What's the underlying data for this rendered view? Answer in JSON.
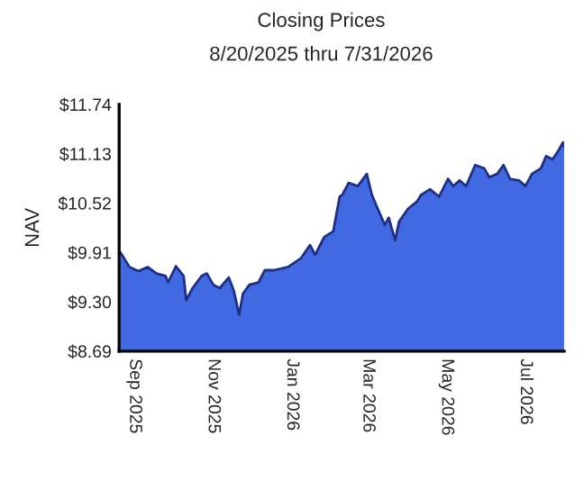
{
  "chart_data": {
    "type": "area",
    "title": "Closing Prices",
    "subtitle": "8/20/2025 thru 7/31/2026",
    "ylabel": "NAV",
    "x": [
      "2025-08-21",
      "2025-08-28",
      "2025-09-04",
      "2025-09-11",
      "2025-09-18",
      "2025-09-25",
      "2025-09-27",
      "2025-10-03",
      "2025-10-09",
      "2025-10-11",
      "2025-10-16",
      "2025-10-23",
      "2025-10-27",
      "2025-11-01",
      "2025-11-06",
      "2025-11-13",
      "2025-11-17",
      "2025-11-21",
      "2025-11-24",
      "2025-11-29",
      "2025-12-06",
      "2025-12-11",
      "2025-12-18",
      "2025-12-29",
      "2026-01-08",
      "2026-01-15",
      "2026-01-19",
      "2026-01-26",
      "2026-02-02",
      "2026-02-05",
      "2026-02-07",
      "2026-02-09",
      "2026-02-14",
      "2026-02-21",
      "2026-02-28",
      "2026-03-04",
      "2026-03-09",
      "2026-03-14",
      "2026-03-17",
      "2026-03-22",
      "2026-03-25",
      "2026-04-01",
      "2026-04-08",
      "2026-04-11",
      "2026-04-18",
      "2026-04-25",
      "2026-05-02",
      "2026-05-06",
      "2026-05-11",
      "2026-05-16",
      "2026-05-23",
      "2026-05-30",
      "2026-06-03",
      "2026-06-09",
      "2026-06-14",
      "2026-06-19",
      "2026-06-26",
      "2026-07-01",
      "2026-07-06",
      "2026-07-13",
      "2026-07-17",
      "2026-07-22",
      "2026-07-27",
      "2026-07-30",
      "2026-07-31"
    ],
    "series": [
      {
        "color": "#4169e1",
        "values": [
          9.91,
          9.73,
          9.68,
          9.73,
          9.65,
          9.62,
          9.54,
          9.74,
          9.62,
          9.32,
          9.47,
          9.62,
          9.65,
          9.51,
          9.47,
          9.6,
          9.43,
          9.14,
          9.4,
          9.51,
          9.54,
          9.69,
          9.69,
          9.73,
          9.84,
          10.0,
          9.88,
          10.1,
          10.17,
          10.43,
          10.6,
          10.62,
          10.77,
          10.73,
          10.88,
          10.62,
          10.43,
          10.25,
          10.34,
          10.06,
          10.29,
          10.45,
          10.54,
          10.62,
          10.69,
          10.6,
          10.82,
          10.73,
          10.8,
          10.73,
          10.99,
          10.95,
          10.84,
          10.88,
          10.99,
          10.82,
          10.8,
          10.73,
          10.88,
          10.95,
          11.1,
          11.06,
          11.18,
          11.27,
          11.21
        ]
      }
    ],
    "xlim": [
      "2025-08-20",
      "2026-07-31"
    ],
    "xticks": [
      {
        "value": "2025-09-01",
        "label": "Sep 2025"
      },
      {
        "value": "2025-11-01",
        "label": "Nov 2025"
      },
      {
        "value": "2026-01-01",
        "label": "Jan 2026"
      },
      {
        "value": "2026-03-01",
        "label": "Mar 2026"
      },
      {
        "value": "2026-05-01",
        "label": "May 2026"
      },
      {
        "value": "2026-07-01",
        "label": "Jul 2026"
      }
    ],
    "ylim": [
      8.69,
      11.74
    ],
    "yticks": [
      {
        "value": 8.69,
        "label": "$8.69"
      },
      {
        "value": 9.3,
        "label": "$9.30"
      },
      {
        "value": 9.91,
        "label": "$9.91"
      },
      {
        "value": 10.52,
        "label": "$10.52"
      },
      {
        "value": 11.13,
        "label": "$11.13"
      },
      {
        "value": 11.74,
        "label": "$11.74"
      }
    ],
    "grid": false,
    "legend": false
  }
}
